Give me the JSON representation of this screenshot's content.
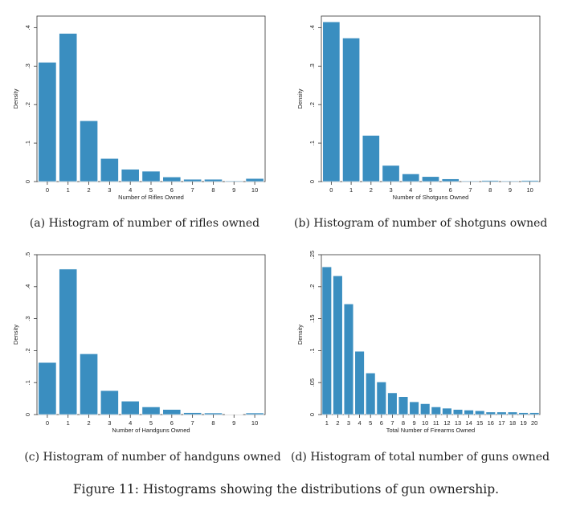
{
  "figure_caption": "Figure 11: Histograms showing the distributions of gun ownership.",
  "bar_color": "#3a8ec0",
  "chart_data": [
    {
      "type": "bar",
      "caption": "(a) Histogram of number of rifles owned",
      "xlabel": "Number of Rifles Owned",
      "ylabel": "Density",
      "ylim": [
        0,
        0.43
      ],
      "yticks": [
        0,
        0.1,
        0.2,
        0.3,
        0.4
      ],
      "ytick_labels": [
        "0",
        ".1",
        ".2",
        ".3",
        ".4"
      ],
      "categories": [
        "0",
        "1",
        "2",
        "3",
        "4",
        "5",
        "6",
        "7",
        "8",
        "9",
        "10"
      ],
      "values": [
        0.31,
        0.385,
        0.158,
        0.06,
        0.032,
        0.027,
        0.012,
        0.006,
        0.006,
        0.002,
        0.008
      ],
      "grid": false
    },
    {
      "type": "bar",
      "caption": "(b) Histogram of number of shotguns owned",
      "xlabel": "Number of Shotguns Owned",
      "ylabel": "Density",
      "ylim": [
        0,
        0.43
      ],
      "yticks": [
        0,
        0.1,
        0.2,
        0.3,
        0.4
      ],
      "ytick_labels": [
        "0",
        ".1",
        ".2",
        ".3",
        ".4"
      ],
      "categories": [
        "0",
        "1",
        "2",
        "3",
        "4",
        "5",
        "6",
        "7",
        "8",
        "9",
        "10"
      ],
      "values": [
        0.415,
        0.373,
        0.12,
        0.042,
        0.02,
        0.013,
        0.007,
        0.002,
        0.003,
        0.002,
        0.003
      ],
      "grid": false
    },
    {
      "type": "bar",
      "caption": "(c) Histogram of number of handguns owned",
      "xlabel": "Number of Handguns Owned",
      "ylabel": "Density",
      "ylim": [
        0,
        0.5
      ],
      "yticks": [
        0,
        0.1,
        0.2,
        0.3,
        0.4,
        0.5
      ],
      "ytick_labels": [
        "0",
        ".1",
        ".2",
        ".3",
        ".4",
        ".5"
      ],
      "categories": [
        "0",
        "1",
        "2",
        "3",
        "4",
        "5",
        "6",
        "7",
        "8",
        "9",
        "10"
      ],
      "values": [
        0.163,
        0.455,
        0.19,
        0.075,
        0.042,
        0.024,
        0.016,
        0.006,
        0.005,
        0.001,
        0.005
      ],
      "grid": false
    },
    {
      "type": "bar",
      "caption": "(d) Histogram of total number of guns owned",
      "xlabel": "Total Number of Firearms Owned",
      "ylabel": "Density",
      "ylim": [
        0,
        0.25
      ],
      "yticks": [
        0,
        0.05,
        0.1,
        0.15,
        0.2,
        0.25
      ],
      "ytick_labels": [
        "0",
        ".05",
        ".1",
        ".15",
        ".2",
        ".25"
      ],
      "categories": [
        "1",
        "2",
        "3",
        "4",
        "5",
        "6",
        "7",
        "8",
        "9",
        "10",
        "11",
        "12",
        "13",
        "14",
        "15",
        "16",
        "17",
        "18",
        "19",
        "20"
      ],
      "values": [
        0.231,
        0.217,
        0.173,
        0.099,
        0.065,
        0.051,
        0.034,
        0.028,
        0.02,
        0.017,
        0.012,
        0.01,
        0.008,
        0.007,
        0.006,
        0.004,
        0.004,
        0.004,
        0.003,
        0.003
      ],
      "grid": false
    }
  ]
}
